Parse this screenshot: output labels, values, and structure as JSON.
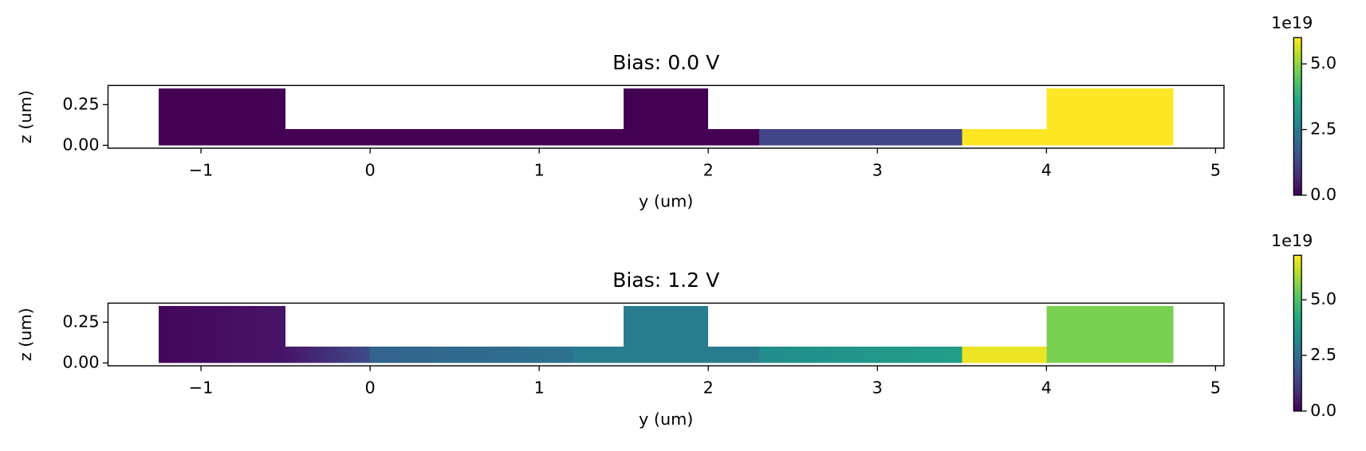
{
  "chart_data": [
    {
      "type": "heatmap",
      "title": "Bias: 0.0 V",
      "x_label": "y (um)",
      "y_label": "z (um)",
      "xlim": [
        -1.55,
        5.05
      ],
      "ylim": [
        -0.0175,
        0.3675
      ],
      "xticks": [
        {
          "value": -1,
          "label": "−1"
        },
        0,
        1,
        2,
        3,
        4,
        5
      ],
      "yticks": [
        {
          "value": 0,
          "label": "0.00"
        },
        0.25
      ],
      "colormap": "viridis",
      "clim": [
        0,
        6.0
      ],
      "cticks": [
        {
          "value": 0,
          "label": "0.0"
        },
        2.5,
        {
          "value": 5,
          "label": "5.0"
        }
      ],
      "c_offset_label": "1e19",
      "regions": [
        {
          "x": [
            -1.25,
            -0.5
          ],
          "y": [
            0,
            0.35
          ],
          "values": [
            0,
            0
          ]
        },
        {
          "x": [
            -0.5,
            2.3
          ],
          "y": [
            0,
            0.1
          ],
          "values": [
            0,
            0
          ]
        },
        {
          "x": [
            1.5,
            2
          ],
          "y": [
            0,
            0.35
          ],
          "values": [
            0,
            0
          ]
        },
        {
          "x": [
            2.3,
            3.5
          ],
          "y": [
            0,
            0.1
          ],
          "values": [
            1.2,
            1.2
          ]
        },
        {
          "x": [
            3.5,
            4
          ],
          "y": [
            0,
            0.1
          ],
          "values": [
            6.0,
            6.0
          ]
        },
        {
          "x": [
            4,
            4.75
          ],
          "y": [
            0,
            0.35
          ],
          "values": [
            6.0,
            6.0
          ]
        }
      ]
    },
    {
      "type": "heatmap",
      "title": "Bias: 1.2 V",
      "x_label": "y (um)",
      "y_label": "z (um)",
      "xlim": [
        -1.55,
        5.05
      ],
      "ylim": [
        -0.0175,
        0.3675
      ],
      "xticks": [
        {
          "value": -1,
          "label": "−1"
        },
        0,
        1,
        2,
        3,
        4,
        5
      ],
      "yticks": [
        {
          "value": 0,
          "label": "0.00"
        },
        0.25
      ],
      "colormap": "viridis",
      "clim": [
        0,
        7.0
      ],
      "cticks": [
        {
          "value": 0,
          "label": "0.0"
        },
        2.5,
        {
          "value": 5,
          "label": "5.0"
        }
      ],
      "c_offset_label": "1e19",
      "regions": [
        {
          "x": [
            -1.25,
            -0.5
          ],
          "y": [
            0,
            0.35
          ],
          "values": [
            0.1,
            0.4
          ]
        },
        {
          "x": [
            -0.5,
            0
          ],
          "y": [
            0,
            0.1
          ],
          "values": [
            0.4,
            1.6
          ]
        },
        {
          "x": [
            0,
            1.2
          ],
          "y": [
            0,
            0.1
          ],
          "values": [
            2.2,
            2.6
          ]
        },
        {
          "x": [
            1.2,
            2.3
          ],
          "y": [
            0,
            0.1
          ],
          "values": [
            2.9,
            2.9
          ]
        },
        {
          "x": [
            1.5,
            2
          ],
          "y": [
            0,
            0.35
          ],
          "values": [
            2.9,
            2.9
          ]
        },
        {
          "x": [
            2.3,
            3.5
          ],
          "y": [
            0,
            0.1
          ],
          "values": [
            3.4,
            3.9
          ]
        },
        {
          "x": [
            3.5,
            4
          ],
          "y": [
            0,
            0.1
          ],
          "values": [
            6.8,
            6.8
          ]
        },
        {
          "x": [
            4,
            4.75
          ],
          "y": [
            0,
            0.35
          ],
          "values": [
            5.6,
            5.6
          ]
        }
      ]
    }
  ]
}
